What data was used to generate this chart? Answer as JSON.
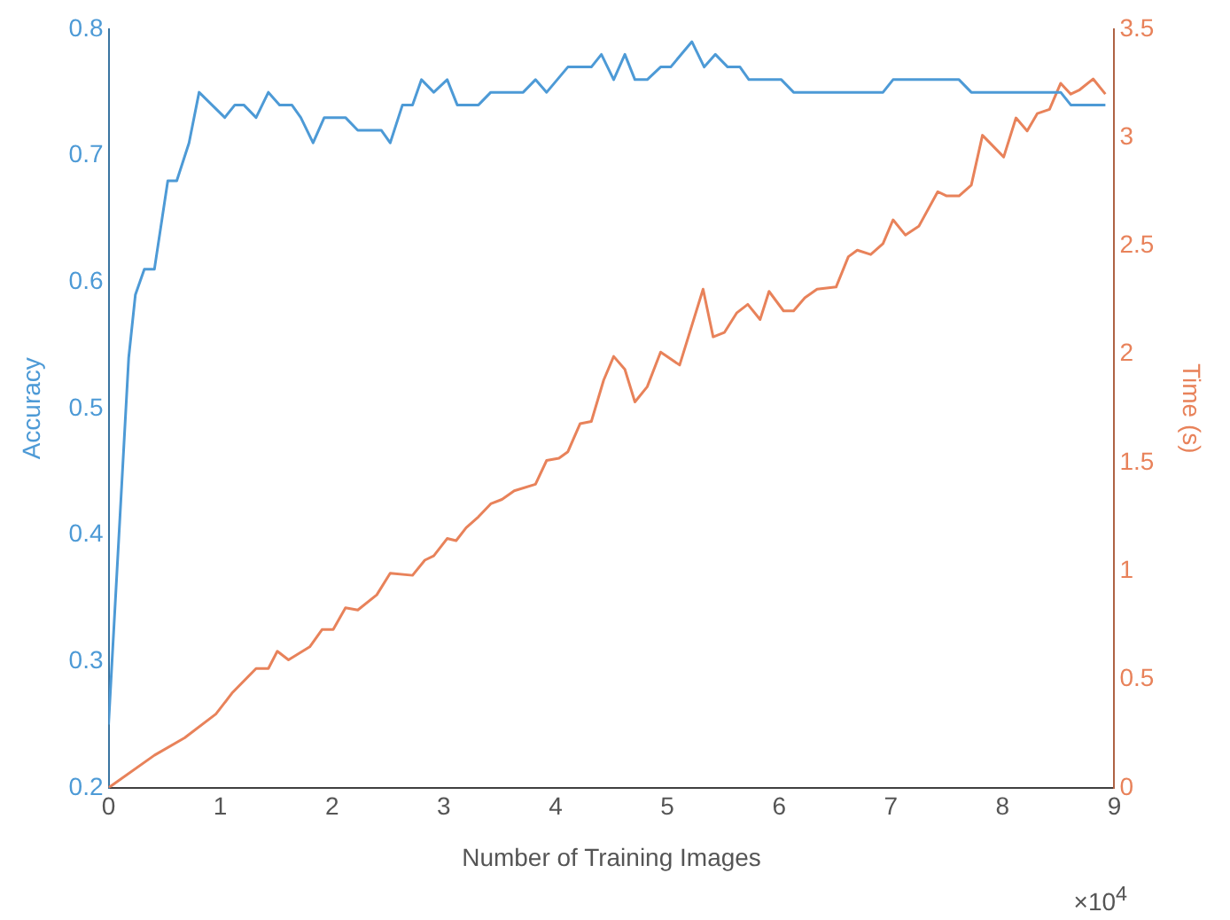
{
  "chart_data": {
    "type": "line",
    "xlabel": "Number of Training Images",
    "ylabel": "Accuracy",
    "y2label": "Time (s)",
    "annotations": [
      "×10$^{4}$"
    ],
    "xlim": [
      0,
      9
    ],
    "xticks": [
      0,
      1,
      2,
      3,
      4,
      5,
      6,
      7,
      8,
      9
    ],
    "ylim": [
      0.2,
      0.8
    ],
    "yticks": [
      0.2,
      0.3,
      0.4,
      0.5,
      0.6,
      0.7,
      0.8
    ],
    "y2lim": [
      0,
      3.5
    ],
    "y2ticks": [
      0,
      0.5,
      1,
      1.5,
      2,
      2.5,
      3,
      3.5
    ],
    "grid": false,
    "legend": false,
    "marker": "none",
    "line_style": "solid",
    "series": [
      {
        "color": "#4d9ad6",
        "x": [
          0,
          0.18,
          0.24,
          0.32,
          0.41,
          0.53,
          0.61,
          0.72,
          0.81,
          1.04,
          1.13,
          1.21,
          1.32,
          1.43,
          1.53,
          1.64,
          1.72,
          1.83,
          1.93,
          2.12,
          2.23,
          2.44,
          2.52,
          2.63,
          2.72,
          2.8,
          2.91,
          3.03,
          3.12,
          3.31,
          3.42,
          3.71,
          3.82,
          3.92,
          4.11,
          4.32,
          4.41,
          4.52,
          4.62,
          4.71,
          4.82,
          4.94,
          5.03,
          5.22,
          5.33,
          5.43,
          5.54,
          5.65,
          5.73,
          6.02,
          6.13,
          6.93,
          7.02,
          7.61,
          7.72,
          8.52,
          8.61,
          8.92
        ],
        "values": [
          0.25,
          0.54,
          0.59,
          0.61,
          0.61,
          0.68,
          0.68,
          0.71,
          0.75,
          0.73,
          0.74,
          0.74,
          0.73,
          0.75,
          0.74,
          0.74,
          0.73,
          0.71,
          0.73,
          0.73,
          0.72,
          0.72,
          0.71,
          0.74,
          0.74,
          0.76,
          0.75,
          0.76,
          0.74,
          0.74,
          0.75,
          0.75,
          0.76,
          0.75,
          0.77,
          0.77,
          0.78,
          0.76,
          0.78,
          0.76,
          0.76,
          0.77,
          0.77,
          0.79,
          0.77,
          0.78,
          0.77,
          0.77,
          0.76,
          0.76,
          0.75,
          0.75,
          0.76,
          0.76,
          0.75,
          0.75,
          0.74,
          0.74
        ]
      },
      {
        "color": "#e8825a",
        "axis": "y2",
        "x": [
          0,
          0.41,
          0.68,
          0.96,
          1.11,
          1.32,
          1.43,
          1.51,
          1.61,
          1.8,
          1.91,
          2.01,
          2.12,
          2.23,
          2.4,
          2.52,
          2.72,
          2.83,
          2.91,
          3.03,
          3.11,
          3.2,
          3.31,
          3.42,
          3.52,
          3.63,
          3.82,
          3.92,
          4.03,
          4.11,
          4.22,
          4.32,
          4.43,
          4.52,
          4.62,
          4.71,
          4.82,
          4.94,
          5.11,
          5.32,
          5.41,
          5.51,
          5.62,
          5.72,
          5.83,
          5.91,
          6.04,
          6.13,
          6.23,
          6.34,
          6.51,
          6.62,
          6.7,
          6.82,
          6.93,
          7.02,
          7.13,
          7.25,
          7.42,
          7.5,
          7.61,
          7.72,
          7.82,
          8.01,
          8.12,
          8.22,
          8.31,
          8.42,
          8.52,
          8.61,
          8.69,
          8.81,
          8.92
        ],
        "values": [
          0,
          0.15,
          0.23,
          0.34,
          0.44,
          0.55,
          0.55,
          0.63,
          0.59,
          0.65,
          0.73,
          0.73,
          0.83,
          0.82,
          0.89,
          0.99,
          0.98,
          1.05,
          1.07,
          1.15,
          1.14,
          1.2,
          1.25,
          1.31,
          1.33,
          1.37,
          1.4,
          1.51,
          1.52,
          1.55,
          1.68,
          1.69,
          1.88,
          1.99,
          1.93,
          1.78,
          1.85,
          2.01,
          1.95,
          2.3,
          2.08,
          2.1,
          2.19,
          2.23,
          2.16,
          2.29,
          2.2,
          2.2,
          2.26,
          2.3,
          2.31,
          2.45,
          2.48,
          2.46,
          2.51,
          2.62,
          2.55,
          2.59,
          2.75,
          2.73,
          2.73,
          2.78,
          3.01,
          2.91,
          3.09,
          3.03,
          3.11,
          3.13,
          3.25,
          3.2,
          3.22,
          3.27,
          3.2
        ]
      }
    ]
  }
}
